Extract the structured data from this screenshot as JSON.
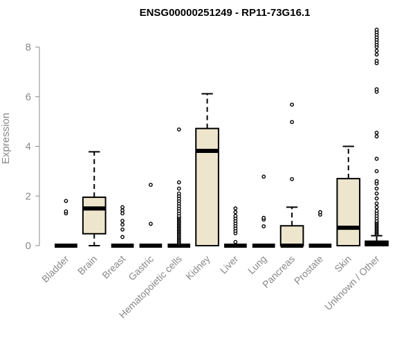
{
  "chart_data": {
    "type": "boxplot",
    "title": "ENSG00000251249 - RP11-73G16.1",
    "ylabel": "Expression",
    "ylim": [
      0,
      8.7
    ],
    "yticks": [
      0,
      2,
      4,
      6,
      8
    ],
    "box_fill": "#ede6cd",
    "box_stroke": "#000000",
    "axis_color": "#888888",
    "categories": [
      "Bladder",
      "Brain",
      "Breast",
      "Gastric",
      "Hematopoietic cells",
      "Kidney",
      "Liver",
      "Lung",
      "Pancreas",
      "Prostate",
      "Skin",
      "Unknown / Other"
    ],
    "boxes": [
      {
        "q1": 0,
        "median": 0,
        "q3": 0,
        "whisker_low": 0,
        "whisker_high": 0,
        "outliers": [
          1.3,
          1.38,
          1.8
        ]
      },
      {
        "q1": 0.48,
        "median": 1.5,
        "q3": 1.95,
        "whisker_low": 0,
        "whisker_high": 3.78,
        "outliers": []
      },
      {
        "q1": 0,
        "median": 0,
        "q3": 0,
        "whisker_low": 0,
        "whisker_high": 0,
        "outliers": [
          0.35,
          0.65,
          0.85,
          1.0,
          1.3,
          1.42,
          1.55
        ]
      },
      {
        "q1": 0,
        "median": 0,
        "q3": 0,
        "whisker_low": 0,
        "whisker_high": 0,
        "outliers": [
          0.88,
          2.45
        ]
      },
      {
        "q1": 0,
        "median": 0,
        "q3": 0,
        "whisker_low": 0,
        "whisker_high": 0,
        "outliers": [
          0.1,
          0.15,
          0.2,
          0.25,
          0.3,
          0.35,
          0.4,
          0.45,
          0.5,
          0.55,
          0.6,
          0.65,
          0.7,
          0.75,
          0.8,
          0.85,
          0.9,
          0.95,
          1.0,
          1.05,
          1.1,
          1.15,
          1.2,
          1.3,
          1.4,
          1.5,
          1.6,
          1.7,
          1.8,
          1.9,
          2.0,
          2.1,
          2.3,
          2.55,
          4.68
        ]
      },
      {
        "q1": 0,
        "median": 3.82,
        "q3": 4.72,
        "whisker_low": 0,
        "whisker_high": 6.12,
        "outliers": []
      },
      {
        "q1": 0,
        "median": 0,
        "q3": 0,
        "whisker_low": 0,
        "whisker_high": 0,
        "outliers": [
          0.15,
          0.5,
          0.6,
          0.7,
          0.8,
          0.9,
          1.0,
          1.1,
          1.2,
          1.35,
          1.5
        ]
      },
      {
        "q1": 0,
        "median": 0,
        "q3": 0,
        "whisker_low": 0,
        "whisker_high": 0,
        "outliers": [
          0.78,
          1.05,
          1.12,
          2.78
        ]
      },
      {
        "q1": 0,
        "median": 0,
        "q3": 0.8,
        "whisker_low": 0,
        "whisker_high": 1.55,
        "outliers": [
          2.68,
          4.98,
          5.68
        ]
      },
      {
        "q1": 0,
        "median": 0,
        "q3": 0,
        "whisker_low": 0,
        "whisker_high": 0,
        "outliers": [
          1.25,
          1.35
        ]
      },
      {
        "q1": 0,
        "median": 0.72,
        "q3": 2.7,
        "whisker_low": 0,
        "whisker_high": 4.0,
        "outliers": []
      },
      {
        "q1": 0,
        "median": 0.1,
        "q3": 0.18,
        "whisker_low": 0,
        "whisker_high": 0.4,
        "outliers": [
          0.45,
          0.5,
          0.55,
          0.6,
          0.65,
          0.7,
          0.75,
          0.8,
          0.85,
          0.9,
          0.95,
          1.0,
          1.1,
          1.2,
          1.3,
          1.4,
          1.55,
          1.7,
          1.9,
          2.1,
          2.3,
          2.5,
          2.6,
          3.0,
          3.5,
          4.4,
          4.55,
          6.2,
          6.3,
          7.35,
          7.45,
          7.7,
          7.85,
          8.0,
          8.1,
          8.2,
          8.3,
          8.4,
          8.5,
          8.6,
          8.7
        ]
      }
    ]
  }
}
